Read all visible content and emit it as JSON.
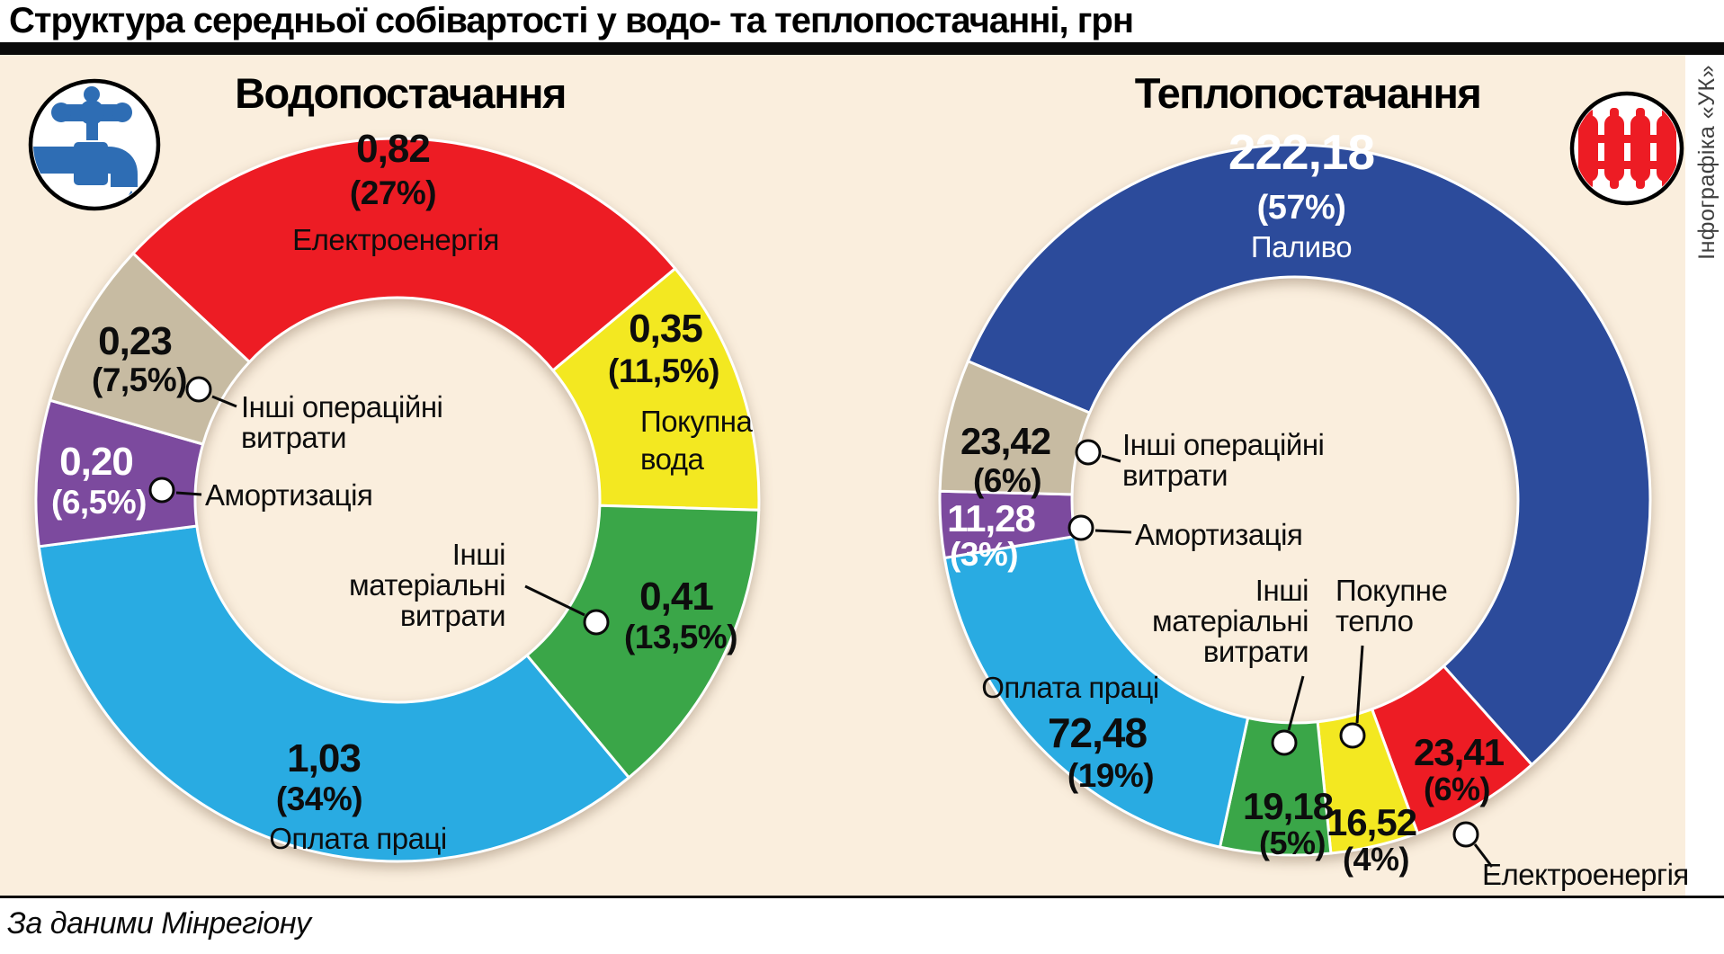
{
  "page": {
    "title": "Структура середньої собівартості у водо- та теплопостачанні, грн",
    "source_note": "За даними Мінрегіону",
    "credit_vertical": "Інфографіка «УК»",
    "currency_unit": "грн",
    "background_color": "#faeedd"
  },
  "icons": {
    "water": "water-tap-icon",
    "heat": "radiator-icon"
  },
  "chart_data": [
    {
      "type": "pie",
      "style": "donut",
      "title": "Водопостачання",
      "icon": "water-tap-icon",
      "units": "грн",
      "start_angle_deg": -47,
      "clockwise": true,
      "segments": [
        {
          "label": "Електроенергія",
          "value": 0.82,
          "pct": 27,
          "value_display": "0,82",
          "pct_display": "(27%)",
          "color": "#ed1c24"
        },
        {
          "label": "Покупна вода",
          "label_lines": [
            "Покупна",
            "вода"
          ],
          "value": 0.35,
          "pct": 11.5,
          "value_display": "0,35",
          "pct_display": "(11,5%)",
          "color": "#f3e821"
        },
        {
          "label": "Інші матеріальні витрати",
          "label_lines": [
            "Інші",
            "матеріальні",
            "витрати"
          ],
          "value": 0.41,
          "pct": 13.5,
          "value_display": "0,41",
          "pct_display": "(13,5%)",
          "color": "#3aa648"
        },
        {
          "label": "Оплата праці",
          "value": 1.03,
          "pct": 34,
          "value_display": "1,03",
          "pct_display": "(34%)",
          "color": "#29abe2"
        },
        {
          "label": "Амортизація",
          "value": 0.2,
          "pct": 6.5,
          "value_display": "0,20",
          "pct_display": "(6,5%)",
          "color": "#7c4a9e",
          "text_color": "#ffffff"
        },
        {
          "label": "Інші операційні витрати",
          "label_lines": [
            "Інші операційні",
            "витрати"
          ],
          "value": 0.23,
          "pct": 7.5,
          "value_display": "0,23",
          "pct_display": "(7,5%)",
          "color": "#c7bba2"
        }
      ]
    },
    {
      "type": "pie",
      "style": "donut",
      "title": "Теплопостачання",
      "icon": "radiator-icon",
      "units": "грн",
      "start_angle_deg": -67,
      "clockwise": true,
      "segments": [
        {
          "label": "Паливо",
          "value": 222.18,
          "pct": 57,
          "value_display": "222,18",
          "pct_display": "(57%)",
          "color": "#2c4b9b",
          "text_color": "#ffffff"
        },
        {
          "label": "Електроенергія",
          "value": 23.41,
          "pct": 6,
          "value_display": "23,41",
          "pct_display": "(6%)",
          "color": "#ed1c24"
        },
        {
          "label": "Покупне тепло",
          "label_lines": [
            "Покупне",
            "тепло"
          ],
          "value": 16.52,
          "pct": 4,
          "value_display": "16,52",
          "pct_display": "(4%)",
          "color": "#f3e821"
        },
        {
          "label": "Інші матеріальні витрати",
          "label_lines": [
            "Інші",
            "матеріальні",
            "витрати"
          ],
          "value": 19.18,
          "pct": 5,
          "value_display": "19,18",
          "pct_display": "(5%)",
          "color": "#3aa648"
        },
        {
          "label": "Оплата праці",
          "value": 72.48,
          "pct": 19,
          "value_display": "72,48",
          "pct_display": "(19%)",
          "color": "#29abe2"
        },
        {
          "label": "Амортизація",
          "value": 11.28,
          "pct": 3,
          "value_display": "11,28",
          "pct_display": "(3%)",
          "color": "#7c4a9e",
          "text_color": "#ffffff"
        },
        {
          "label": "Інші операційні витрати",
          "label_lines": [
            "Інші операційні",
            "витрати"
          ],
          "value": 23.42,
          "pct": 6,
          "value_display": "23,42",
          "pct_display": "(6%)",
          "color": "#c7bba2"
        }
      ]
    }
  ]
}
